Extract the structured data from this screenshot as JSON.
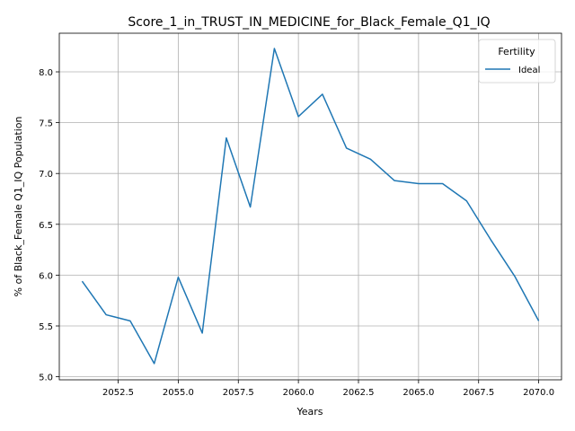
{
  "chart_data": {
    "type": "line",
    "title": "Score_1_in_TRUST_IN_MEDICINE_for_Black_Female_Q1_IQ",
    "xlabel": "Years",
    "ylabel": "% of Black_Female Q1_IQ Population",
    "xlim": [
      2050.05,
      2070.95
    ],
    "ylim": [
      4.97,
      8.38
    ],
    "x_ticks": [
      2052.5,
      2055.0,
      2057.5,
      2060.0,
      2062.5,
      2065.0,
      2067.5,
      2070.0
    ],
    "x_tick_labels": [
      "2052.5",
      "2055.0",
      "2057.5",
      "2060.0",
      "2062.5",
      "2065.0",
      "2067.5",
      "2070.0"
    ],
    "y_ticks": [
      5.0,
      5.5,
      6.0,
      6.5,
      7.0,
      7.5,
      8.0
    ],
    "y_tick_labels": [
      "5.0",
      "5.5",
      "6.0",
      "6.5",
      "7.0",
      "7.5",
      "8.0"
    ],
    "grid": true,
    "legend": {
      "title": "Fertility",
      "placement": "top-right"
    },
    "series": [
      {
        "name": "Ideal",
        "color": "#1f77b4",
        "x": [
          2051,
          2052,
          2053,
          2054,
          2055,
          2056,
          2057,
          2058,
          2059,
          2060,
          2061,
          2062,
          2063,
          2064,
          2065,
          2066,
          2067,
          2068,
          2069,
          2070
        ],
        "y": [
          5.94,
          5.61,
          5.55,
          5.13,
          5.98,
          5.43,
          7.35,
          6.67,
          8.23,
          7.56,
          7.78,
          7.25,
          7.14,
          6.93,
          6.9,
          6.9,
          6.73,
          6.35,
          5.99,
          5.55
        ]
      }
    ]
  }
}
